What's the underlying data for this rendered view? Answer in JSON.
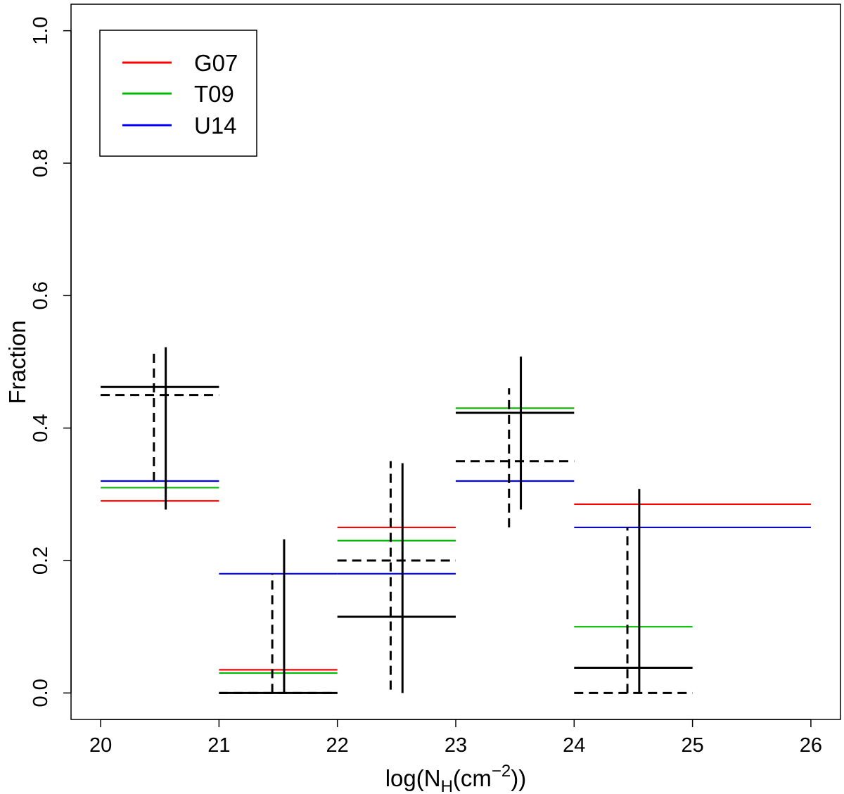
{
  "chart_data": {
    "type": "step",
    "title": "",
    "xlabel_parts": [
      "log(N",
      "H",
      "(cm",
      "−2",
      "))"
    ],
    "ylabel": "Fraction",
    "xlim": [
      19.75,
      26.25
    ],
    "ylim": [
      -0.04,
      1.04
    ],
    "xticks": [
      20,
      21,
      22,
      23,
      24,
      25,
      26
    ],
    "xtick_labels": [
      "20",
      "21",
      "22",
      "23",
      "24",
      "25",
      "26"
    ],
    "yticks": [
      0.0,
      0.2,
      0.4,
      0.6,
      0.8,
      1.0
    ],
    "ytick_labels": [
      "0.0",
      "0.2",
      "0.4",
      "0.6",
      "0.8",
      "1.0"
    ],
    "grid": false,
    "legend_position": "top-left",
    "colors": {
      "G07": "#ff0000",
      "T09": "#00bb00",
      "U14": "#0000ff",
      "observed": "#000000"
    },
    "series": [
      {
        "name": "G07",
        "bins": [
          [
            20,
            21,
            0.29
          ],
          [
            21,
            22,
            0.035
          ],
          [
            22,
            23,
            0.25
          ],
          [
            23,
            24,
            0.43
          ],
          [
            24,
            26,
            0.285
          ]
        ]
      },
      {
        "name": "T09",
        "bins": [
          [
            20,
            21,
            0.31
          ],
          [
            21,
            22,
            0.03
          ],
          [
            22,
            23,
            0.23
          ],
          [
            23,
            24,
            0.43
          ],
          [
            24,
            25,
            0.1
          ]
        ]
      },
      {
        "name": "U14",
        "bins": [
          [
            20,
            21,
            0.32
          ],
          [
            21,
            22,
            0.18
          ],
          [
            22,
            23,
            0.18
          ],
          [
            23,
            24,
            0.32
          ],
          [
            24,
            26,
            0.25
          ]
        ]
      }
    ],
    "observed_solid": [
      {
        "x0": 20,
        "x1": 21,
        "xerr": 20.55,
        "y": 0.462,
        "ylo": 0.277,
        "yhi": 0.522
      },
      {
        "x0": 21,
        "x1": 22,
        "xerr": 21.55,
        "y": 0.0,
        "ylo": 0.0,
        "yhi": 0.232
      },
      {
        "x0": 22,
        "x1": 23,
        "xerr": 22.55,
        "y": 0.115,
        "ylo": 0.0,
        "yhi": 0.347
      },
      {
        "x0": 23,
        "x1": 24,
        "xerr": 23.55,
        "y": 0.423,
        "ylo": 0.277,
        "yhi": 0.508
      },
      {
        "x0": 24,
        "x1": 25,
        "xerr": 24.55,
        "y": 0.038,
        "ylo": 0.0,
        "yhi": 0.308
      }
    ],
    "observed_dashed": [
      {
        "x0": 20,
        "x1": 21,
        "xerr": 20.45,
        "y": 0.45,
        "ylo": 0.32,
        "yhi": 0.52
      },
      {
        "x0": 21,
        "x1": 22,
        "xerr": 21.45,
        "y": 0.0,
        "ylo": 0.0,
        "yhi": 0.18
      },
      {
        "x0": 22,
        "x1": 23,
        "xerr": 22.45,
        "y": 0.2,
        "ylo": 0.005,
        "yhi": 0.35
      },
      {
        "x0": 23,
        "x1": 24,
        "xerr": 23.45,
        "y": 0.35,
        "ylo": 0.25,
        "yhi": 0.46
      },
      {
        "x0": 24,
        "x1": 25,
        "xerr": 24.45,
        "y": 0.0,
        "ylo": 0.0,
        "yhi": 0.25
      }
    ]
  }
}
